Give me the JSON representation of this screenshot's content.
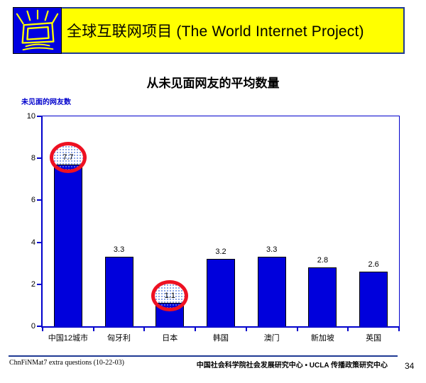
{
  "header": {
    "title": "全球互联网项目 (The World Internet Project)",
    "logo_icon": "shining-monitor-logo",
    "banner_bg": "#FFFF00",
    "banner_border": "#1F3A93"
  },
  "chart_data": {
    "type": "bar",
    "title": "从未见面网友的平均数量",
    "xlabel": "",
    "ylabel": "未见面的网友数",
    "categories": [
      "中国12城市",
      "匈牙利",
      "日本",
      "韩国",
      "澳门",
      "新加坡",
      "英国"
    ],
    "values": [
      7.7,
      3.3,
      1.1,
      3.2,
      3.3,
      2.8,
      2.6
    ],
    "value_labels": [
      "7.7",
      "3.3",
      "1.1",
      "3.2",
      "3.3",
      "2.8",
      "2.6"
    ],
    "highlighted_indices": [
      0,
      2
    ],
    "ylim": [
      0,
      10
    ],
    "yticks": [
      0,
      2,
      4,
      6,
      8,
      10
    ],
    "grid": false,
    "legend": null,
    "bar_color": "#0000DC",
    "axis_color": "#0000CC",
    "highlight_circle_color": "#EE1122"
  },
  "footer": {
    "left": "ChnFiNMat7 extra questions (10-22-03)",
    "center": "中国社会科学院社会发展研究中心 • UCLA 传播政策研究中心",
    "page": "34"
  }
}
